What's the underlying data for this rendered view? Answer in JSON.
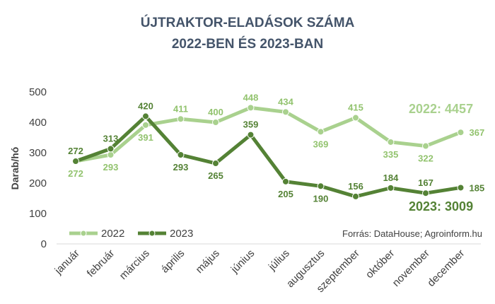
{
  "chart_data": {
    "type": "line",
    "title": [
      "ÚJTRAKTOR-ELADÁSOK SZÁMA",
      "2022-BEN ÉS 2023-BAN"
    ],
    "ylabel": "Darab/hó",
    "xlabel": "",
    "ylim": [
      0,
      500
    ],
    "yticks": [
      "0",
      "100",
      "200",
      "300",
      "400",
      "500"
    ],
    "grid": false,
    "legend": "bottom-left",
    "categories": [
      "január",
      "február",
      "március",
      "április",
      "május",
      "június",
      "július",
      "augusztus",
      "szeptember",
      "október",
      "november",
      "december"
    ],
    "series": [
      {
        "name": "2022",
        "color": "#a9d18e",
        "values": [
          272,
          293,
          391,
          411,
          400,
          448,
          434,
          369,
          415,
          335,
          322,
          367
        ]
      },
      {
        "name": "2023",
        "color": "#548235",
        "values": [
          272,
          313,
          420,
          293,
          265,
          359,
          205,
          190,
          156,
          184,
          167,
          185
        ]
      }
    ],
    "annotations": {
      "total_2022": "2022: 4457",
      "total_2023": "2023: 3009"
    },
    "source": "Forrás: DataHouse; Agroinform.hu"
  }
}
